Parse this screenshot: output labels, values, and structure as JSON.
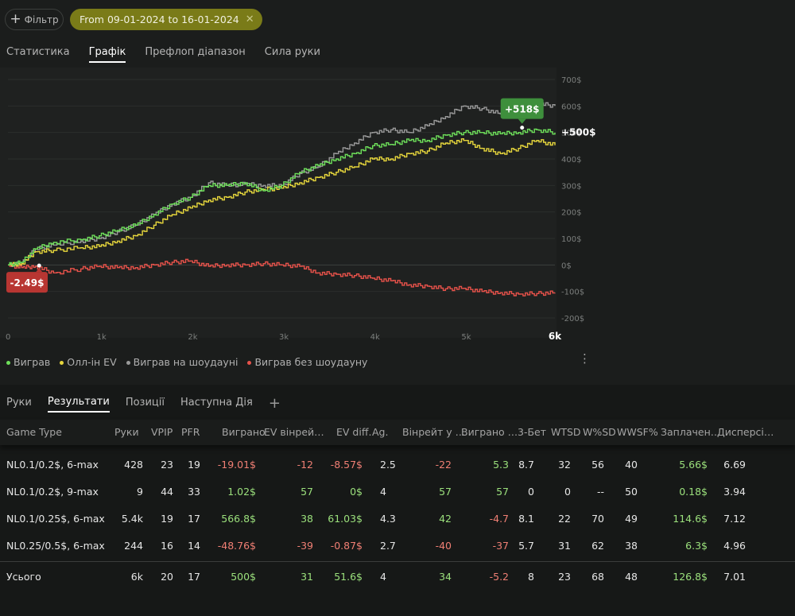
{
  "filter": {
    "label": "Фільтр"
  },
  "date_range": {
    "label": "From 09-01-2024 to 16-01-2024"
  },
  "main_tabs": [
    {
      "label": "Статистика",
      "active": false
    },
    {
      "label": "Графік",
      "active": true
    },
    {
      "label": "Префлоп діапазон",
      "active": false
    },
    {
      "label": "Сила руки",
      "active": false
    }
  ],
  "colors": {
    "won": "#6ee05a",
    "allin_ev": "#e6d63c",
    "showdown": "#9a9a9a",
    "non_showdown": "#e8524a",
    "badge_pos": "#3e8f3c",
    "badge_neg": "#b83632"
  },
  "chart_data": {
    "type": "line",
    "x_ticks": [
      "0",
      "1k",
      "2k",
      "3k",
      "4k",
      "5k",
      "6k"
    ],
    "y_ticks": [
      "700$",
      "600$",
      "500$",
      "400$",
      "300$",
      "200$",
      "100$",
      "0$",
      "-100$",
      "-200$"
    ],
    "xlim": [
      0,
      6000
    ],
    "ylim": [
      -200,
      700
    ],
    "grid": true,
    "series": [
      {
        "name": "Виграв",
        "x": [
          0,
          150,
          300,
          500,
          800,
          1000,
          1200,
          1400,
          1600,
          1800,
          2000,
          2200,
          2400,
          2600,
          2800,
          3000,
          3200,
          3400,
          3600,
          3800,
          4000,
          4200,
          4400,
          4600,
          4800,
          5000,
          5200,
          5400,
          5600,
          5800,
          6000
        ],
        "y": [
          0,
          10,
          60,
          85,
          95,
          110,
          130,
          150,
          190,
          230,
          255,
          300,
          300,
          310,
          280,
          300,
          350,
          375,
          400,
          420,
          450,
          455,
          470,
          470,
          490,
          500,
          500,
          495,
          500,
          510,
          500
        ]
      },
      {
        "name": "Олл-ін EV",
        "x": [
          0,
          150,
          300,
          500,
          800,
          1000,
          1200,
          1400,
          1600,
          1800,
          2000,
          2200,
          2400,
          2600,
          2800,
          3000,
          3200,
          3400,
          3600,
          3800,
          4000,
          4200,
          4400,
          4600,
          4800,
          5000,
          5200,
          5400,
          5600,
          5800,
          6000
        ],
        "y": [
          0,
          5,
          50,
          55,
          65,
          70,
          90,
          110,
          150,
          190,
          215,
          245,
          255,
          275,
          285,
          290,
          310,
          330,
          350,
          370,
          400,
          400,
          420,
          430,
          460,
          470,
          440,
          420,
          440,
          470,
          451.6
        ]
      },
      {
        "name": "Виграв на шоудауні",
        "x": [
          0,
          150,
          300,
          500,
          800,
          1000,
          1200,
          1400,
          1600,
          1800,
          2000,
          2200,
          2400,
          2600,
          2800,
          3000,
          3200,
          3400,
          3600,
          3800,
          4000,
          4200,
          4400,
          4600,
          4800,
          5000,
          5200,
          5400,
          5600,
          5800,
          6000
        ],
        "y": [
          0,
          5,
          60,
          75,
          90,
          100,
          125,
          150,
          190,
          230,
          255,
          310,
          300,
          305,
          300,
          300,
          345,
          370,
          420,
          460,
          500,
          510,
          500,
          525,
          560,
          600,
          590,
          570,
          590,
          610,
          600
        ]
      },
      {
        "name": "Виграв без шоудауну",
        "x": [
          0,
          150,
          300,
          500,
          800,
          1000,
          1200,
          1400,
          1600,
          1800,
          2000,
          2200,
          2400,
          2600,
          2800,
          3000,
          3200,
          3400,
          3600,
          3800,
          4000,
          4200,
          4400,
          4600,
          4800,
          5000,
          5200,
          5400,
          5600,
          5800,
          6000
        ],
        "y": [
          0,
          -10,
          -5,
          -30,
          -15,
          -5,
          -10,
          -10,
          0,
          10,
          15,
          -5,
          0,
          0,
          5,
          0,
          -5,
          -30,
          -35,
          -40,
          -50,
          -60,
          -75,
          -80,
          -90,
          -88,
          -100,
          -105,
          -110,
          -108,
          -105
        ]
      }
    ],
    "annotations": {
      "peak": "+518$",
      "peak_x": 5640,
      "peak_y": 518,
      "end": "+500$",
      "low": "-2.49$",
      "low_x": 220,
      "low_y": -2.49
    }
  },
  "legend": {
    "menu": "⋮"
  },
  "lower_tabs": [
    {
      "label": "Руки",
      "active": false
    },
    {
      "label": "Результати",
      "active": true
    },
    {
      "label": "Позиції",
      "active": false
    },
    {
      "label": "Наступна Дія",
      "active": false
    }
  ],
  "add_tab": "+",
  "table": {
    "headers": [
      "Game Type",
      "Руки",
      "VPIP",
      "PFR",
      "Виграно",
      "EV вінрей…",
      "EV diff.",
      "Ag.",
      "Вінрейт у …",
      "Виграно …",
      "3-Бет",
      "WTSD",
      "W%SD",
      "WWSF%",
      "Заплачен…",
      "Дисперсі…"
    ],
    "rows": [
      [
        "NL0.1/0.2$, 6-max",
        "428",
        "23",
        "19",
        "-19.01$",
        "-12",
        "-8.57$",
        "2.5",
        "-22",
        "5.3",
        "8.7",
        "32",
        "56",
        "40",
        "5.66$",
        "6.69"
      ],
      [
        "NL0.1/0.2$, 9-max",
        "9",
        "44",
        "33",
        "1.02$",
        "57",
        "0$",
        "4",
        "57",
        "57",
        "0",
        "0",
        "--",
        "50",
        "0.18$",
        "3.94"
      ],
      [
        "NL0.1/0.25$, 6-max",
        "5.4k",
        "19",
        "17",
        "566.8$",
        "38",
        "61.03$",
        "4.3",
        "42",
        "-4.7",
        "8.1",
        "22",
        "70",
        "49",
        "114.6$",
        "7.12"
      ],
      [
        "NL0.25/0.5$, 6-max",
        "244",
        "16",
        "14",
        "-48.76$",
        "-39",
        "-0.87$",
        "2.7",
        "-40",
        "-37",
        "5.7",
        "31",
        "62",
        "38",
        "6.3$",
        "4.96"
      ]
    ],
    "total": [
      "Усього",
      "6k",
      "20",
      "17",
      "500$",
      "31",
      "51.6$",
      "4",
      "34",
      "-5.2",
      "8",
      "23",
      "68",
      "48",
      "126.8$",
      "7.01"
    ]
  }
}
